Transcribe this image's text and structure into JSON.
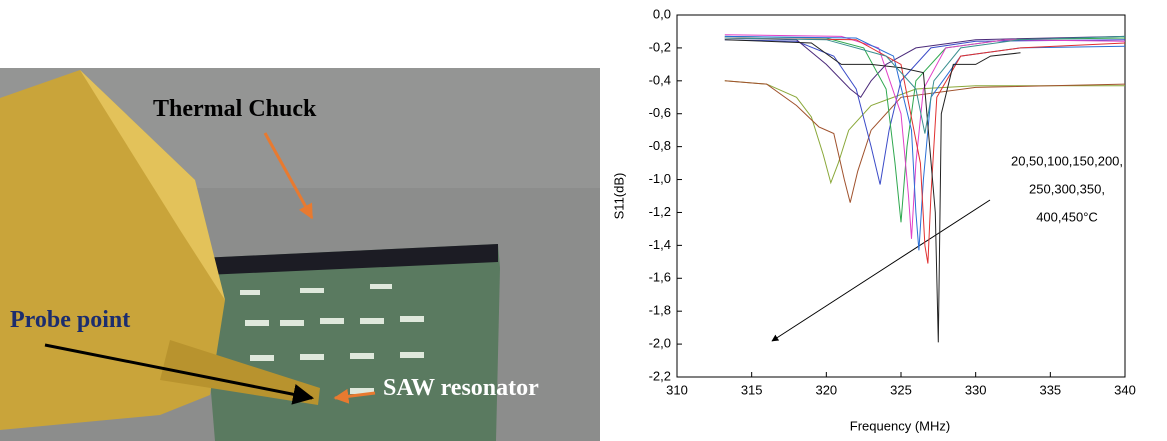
{
  "photo": {
    "labels": [
      "Thermal Chuck",
      "Probe point",
      "SAW resonator"
    ]
  },
  "chart_data": {
    "type": "line",
    "xlabel": "Frequency (MHz)",
    "ylabel": "S11(dB)",
    "annotation": [
      "20,50,100,150,200,",
      "250,300,350,",
      "400,450°C"
    ],
    "xlim": [
      310,
      340
    ],
    "xticks": [
      310,
      315,
      320,
      325,
      330,
      335,
      340
    ],
    "ylim": [
      -2.2,
      0
    ],
    "yticks": [
      {
        "value": 0,
        "label": "0,0"
      },
      {
        "value": -0.2,
        "label": "-0,2"
      },
      {
        "value": -0.4,
        "label": "-0,4"
      },
      {
        "value": -0.6,
        "label": "-0,6"
      },
      {
        "value": -0.8,
        "label": "-0,8"
      },
      {
        "value": -1.0,
        "label": "-1,0"
      },
      {
        "value": -1.2,
        "label": "-1,2"
      },
      {
        "value": -1.4,
        "label": "-1,4"
      },
      {
        "value": -1.6,
        "label": "-1,6"
      },
      {
        "value": -1.8,
        "label": "-1,8"
      },
      {
        "value": -2.0,
        "label": "-2,0"
      },
      {
        "value": -2.2,
        "label": "-2,2"
      }
    ],
    "series": [
      {
        "color": "#8aa83a",
        "x": [
          313.2,
          316,
          318,
          319,
          319.8,
          320.3,
          320.8,
          321.5,
          323,
          326,
          330,
          340
        ],
        "values": [
          -0.4,
          -0.42,
          -0.5,
          -0.62,
          -0.85,
          -1.02,
          -0.9,
          -0.7,
          -0.55,
          -0.45,
          -0.43,
          -0.43
        ]
      },
      {
        "color": "#a0522d",
        "x": [
          313.2,
          316,
          318,
          319.5,
          320.5,
          321.2,
          321.6,
          322.1,
          323,
          325,
          330,
          340
        ],
        "values": [
          -0.4,
          -0.42,
          -0.55,
          -0.68,
          -0.72,
          -1.0,
          -1.14,
          -0.95,
          -0.7,
          -0.5,
          -0.44,
          -0.42
        ]
      },
      {
        "color": "#3b4bc8",
        "x": [
          313.2,
          318,
          320.5,
          322,
          323,
          323.6,
          324.2,
          325,
          327,
          330,
          340
        ],
        "values": [
          -0.15,
          -0.16,
          -0.25,
          -0.45,
          -0.8,
          -1.03,
          -0.7,
          -0.4,
          -0.2,
          -0.16,
          -0.15
        ]
      },
      {
        "color": "#4b2a7a",
        "x": [
          313.2,
          318,
          320,
          321.6,
          322.3,
          323,
          324,
          326,
          330,
          340
        ],
        "values": [
          -0.14,
          -0.15,
          -0.3,
          -0.45,
          -0.5,
          -0.4,
          -0.3,
          -0.2,
          -0.15,
          -0.13
        ]
      },
      {
        "color": "#2fa84f",
        "x": [
          313.2,
          320,
          322.5,
          324,
          324.6,
          325,
          325.4,
          326,
          328,
          332,
          340
        ],
        "values": [
          -0.13,
          -0.14,
          -0.2,
          -0.45,
          -0.9,
          -1.26,
          -0.8,
          -0.4,
          -0.2,
          -0.15,
          -0.14
        ]
      },
      {
        "color": "#e040c8",
        "x": [
          313.2,
          321,
          323.5,
          325,
          325.5,
          325.7,
          326,
          326.5,
          328,
          332,
          340
        ],
        "values": [
          -0.12,
          -0.13,
          -0.2,
          -0.6,
          -1.1,
          -1.36,
          -0.9,
          -0.45,
          -0.2,
          -0.15,
          -0.16
        ]
      },
      {
        "color": "#2a6fd6",
        "x": [
          313.2,
          322,
          324.5,
          325.7,
          326,
          326.2,
          326.5,
          327,
          329,
          333,
          340
        ],
        "values": [
          -0.13,
          -0.14,
          -0.25,
          -0.7,
          -1.2,
          -1.43,
          -1.0,
          -0.5,
          -0.25,
          -0.2,
          -0.19
        ]
      },
      {
        "color": "#e03030",
        "x": [
          313.2,
          322,
          325,
          326.3,
          326.6,
          326.8,
          327,
          327.4,
          329,
          333,
          340
        ],
        "values": [
          -0.14,
          -0.15,
          -0.3,
          -0.9,
          -1.4,
          -1.51,
          -1.1,
          -0.5,
          -0.25,
          -0.2,
          -0.17
        ]
      },
      {
        "color": "#222222",
        "x": [
          313.2,
          319,
          321,
          323,
          325,
          326.5,
          327.3,
          327.5,
          327.7,
          328.5,
          330,
          331,
          333
        ],
        "values": [
          -0.15,
          -0.17,
          -0.3,
          -0.3,
          -0.32,
          -0.35,
          -1.2,
          -1.99,
          -0.6,
          -0.3,
          -0.3,
          -0.25,
          -0.23
        ]
      },
      {
        "color": "#3a8f8f",
        "x": [
          313.2,
          320,
          324,
          326,
          326.6,
          327.2,
          329,
          333,
          340
        ],
        "values": [
          -0.14,
          -0.15,
          -0.25,
          -0.45,
          -0.72,
          -0.4,
          -0.2,
          -0.15,
          -0.13
        ]
      }
    ]
  }
}
